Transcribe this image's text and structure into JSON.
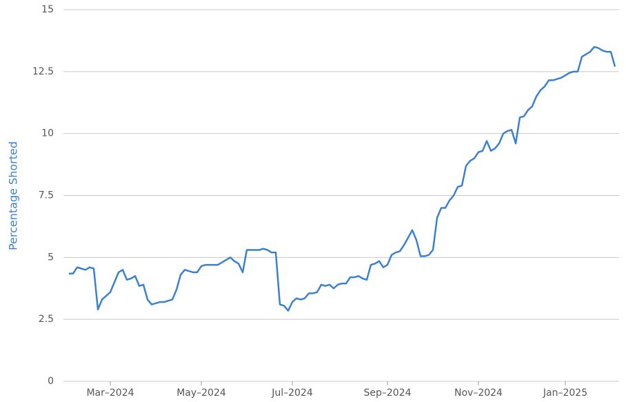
{
  "chart_data": {
    "type": "line",
    "y_label": "Percentage Shorted",
    "color": "#3a80d2",
    "grid": true,
    "ylim": [
      0,
      15
    ],
    "yticks": [
      0,
      2.5,
      5,
      7.5,
      10,
      12.5,
      15
    ],
    "categories": [
      null,
      null,
      null,
      null,
      null,
      null,
      null,
      null,
      null,
      null,
      "Mar–2024",
      null,
      null,
      null,
      null,
      null,
      null,
      null,
      null,
      null,
      null,
      null,
      null,
      null,
      null,
      null,
      null,
      null,
      null,
      null,
      null,
      null,
      "May–2024",
      null,
      null,
      null,
      null,
      null,
      null,
      null,
      null,
      null,
      null,
      null,
      null,
      null,
      null,
      null,
      null,
      null,
      null,
      null,
      null,
      null,
      "Jul–2024",
      null,
      null,
      null,
      null,
      null,
      null,
      null,
      null,
      null,
      null,
      null,
      null,
      null,
      null,
      null,
      null,
      null,
      null,
      null,
      null,
      null,
      null,
      "Sep–2024",
      null,
      null,
      null,
      null,
      null,
      null,
      null,
      null,
      null,
      null,
      null,
      null,
      null,
      null,
      null,
      null,
      null,
      null,
      null,
      null,
      null,
      "Nov–2024",
      null,
      null,
      null,
      null,
      null,
      null,
      null,
      null,
      null,
      null,
      null,
      null,
      null,
      null,
      null,
      null,
      null,
      null,
      null,
      null,
      "Jan–2025",
      null,
      null,
      null,
      null,
      null,
      null,
      null,
      null,
      null,
      null,
      null,
      null
    ],
    "values": [
      4.35,
      4.35,
      4.6,
      4.55,
      4.5,
      4.6,
      4.55,
      2.9,
      3.3,
      3.45,
      3.6,
      4.0,
      4.4,
      4.5,
      4.1,
      4.15,
      4.25,
      3.85,
      3.9,
      3.3,
      3.1,
      3.15,
      3.2,
      3.2,
      3.25,
      3.3,
      3.7,
      4.3,
      4.5,
      4.45,
      4.4,
      4.4,
      4.65,
      4.7,
      4.7,
      4.7,
      4.7,
      4.8,
      4.9,
      5.0,
      4.85,
      4.75,
      4.4,
      5.3,
      5.3,
      5.3,
      5.3,
      5.35,
      5.3,
      5.2,
      5.2,
      3.1,
      3.05,
      2.85,
      3.2,
      3.35,
      3.3,
      3.35,
      3.55,
      3.55,
      3.6,
      3.9,
      3.85,
      3.9,
      3.75,
      3.9,
      3.95,
      3.95,
      4.2,
      4.2,
      4.25,
      4.15,
      4.1,
      4.7,
      4.75,
      4.85,
      4.6,
      4.7,
      5.1,
      5.2,
      5.25,
      5.5,
      5.8,
      6.1,
      5.7,
      5.05,
      5.05,
      5.1,
      5.3,
      6.6,
      7.0,
      7.0,
      7.3,
      7.5,
      7.85,
      7.9,
      8.7,
      8.9,
      9.0,
      9.25,
      9.3,
      9.7,
      9.3,
      9.4,
      9.6,
      10.0,
      10.1,
      10.15,
      9.6,
      10.65,
      10.7,
      10.95,
      11.1,
      11.5,
      11.75,
      11.9,
      12.15,
      12.15,
      12.2,
      12.25,
      12.35,
      12.45,
      12.5,
      12.5,
      13.1,
      13.2,
      13.3,
      13.5,
      13.45,
      13.35,
      13.3,
      13.3,
      12.7
    ]
  }
}
